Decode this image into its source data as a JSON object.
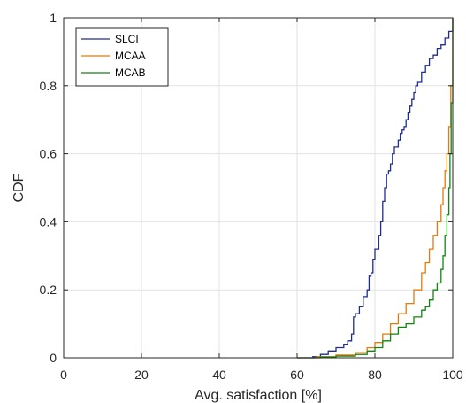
{
  "chart_data": {
    "type": "line",
    "xlabel": "Avg. satisfaction [%]",
    "ylabel": "CDF",
    "xlim": [
      0,
      100
    ],
    "ylim": [
      0,
      1
    ],
    "xticks": [
      0,
      20,
      40,
      60,
      80,
      100
    ],
    "yticks": [
      0,
      0.2,
      0.4,
      0.6,
      0.8,
      1
    ],
    "xtick_labels": [
      "0",
      "20",
      "40",
      "60",
      "80",
      "100"
    ],
    "ytick_labels": [
      "0",
      "0.2",
      "0.4",
      "0.6",
      "0.8",
      "1"
    ],
    "grid": true,
    "legend_position": "top-left",
    "series": [
      {
        "name": "SLCI",
        "color": "#1f2d8f",
        "x": [
          60,
          64,
          66,
          68,
          70,
          72,
          73,
          74,
          74.5,
          75,
          76,
          77,
          78,
          78.5,
          79,
          79.5,
          80,
          81,
          81.5,
          82,
          82.5,
          83,
          83.5,
          84,
          84.5,
          85,
          86,
          86.5,
          87,
          87.5,
          88,
          88.5,
          89,
          89.5,
          90,
          90.5,
          91,
          92,
          93,
          94,
          95,
          96,
          97,
          98,
          99,
          100
        ],
        "y": [
          0,
          0.003,
          0.01,
          0.02,
          0.03,
          0.04,
          0.05,
          0.07,
          0.12,
          0.13,
          0.15,
          0.18,
          0.2,
          0.24,
          0.25,
          0.29,
          0.32,
          0.36,
          0.4,
          0.46,
          0.5,
          0.54,
          0.55,
          0.57,
          0.6,
          0.62,
          0.64,
          0.66,
          0.67,
          0.68,
          0.7,
          0.72,
          0.74,
          0.76,
          0.78,
          0.8,
          0.81,
          0.84,
          0.86,
          0.88,
          0.89,
          0.91,
          0.92,
          0.94,
          0.96,
          1.0
        ]
      },
      {
        "name": "MCAA",
        "color": "#e07b10",
        "x": [
          60,
          65,
          70,
          75,
          78,
          80,
          82,
          84,
          86,
          88,
          90,
          92,
          93,
          94,
          95,
          96,
          97,
          97.5,
          98,
          98.5,
          99,
          99.5,
          100
        ],
        "y": [
          0,
          0.003,
          0.008,
          0.015,
          0.03,
          0.045,
          0.07,
          0.1,
          0.13,
          0.16,
          0.2,
          0.25,
          0.28,
          0.32,
          0.36,
          0.4,
          0.45,
          0.5,
          0.55,
          0.6,
          0.68,
          0.8,
          1.0
        ]
      },
      {
        "name": "MCAB",
        "color": "#128512",
        "x": [
          60,
          66,
          70,
          75,
          78,
          80,
          82,
          84,
          86,
          88,
          90,
          92,
          93,
          94,
          95,
          96,
          97,
          97.5,
          98,
          98.5,
          99,
          99.3,
          99.6,
          100
        ],
        "y": [
          0,
          0.002,
          0.005,
          0.01,
          0.02,
          0.03,
          0.05,
          0.07,
          0.09,
          0.1,
          0.12,
          0.14,
          0.15,
          0.17,
          0.2,
          0.22,
          0.26,
          0.3,
          0.36,
          0.42,
          0.5,
          0.6,
          0.75,
          1.0
        ]
      }
    ]
  }
}
